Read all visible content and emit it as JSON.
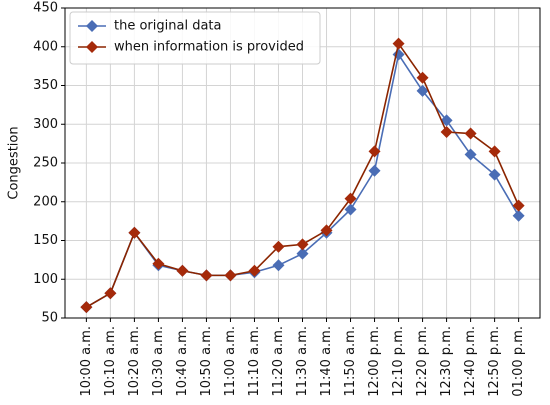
{
  "chart_data": {
    "type": "line",
    "y_label": "Congestion",
    "categories": [
      "10:00 a.m.",
      "10:10 a.m.",
      "10:20 a.m.",
      "10:30 a.m.",
      "10:40 a.m.",
      "10:50 a.m.",
      "11:00 a.m.",
      "11:10 a.m.",
      "11:20 a.m.",
      "11:30 a.m.",
      "11:40 a.m.",
      "11:50 a.m.",
      "12:00 p.m.",
      "12:10 p.m.",
      "12:20 p.m.",
      "12:30 p.m.",
      "12:40 p.m.",
      "12:50 p.m.",
      "01:00 p.m."
    ],
    "series": [
      {
        "name": "the original data",
        "color": "#4a6db5",
        "marker_color": "#4a6db5",
        "values": [
          64,
          82,
          160,
          118,
          111,
          105,
          105,
          109,
          118,
          133,
          160,
          190,
          240,
          390,
          343,
          305,
          261,
          235,
          182
        ]
      },
      {
        "name": "when information is provided",
        "color": "#8b2500",
        "marker_color": "#a52a0a",
        "values": [
          64,
          82,
          160,
          120,
          111,
          105,
          105,
          111,
          142,
          145,
          163,
          204,
          265,
          404,
          360,
          290,
          288,
          265,
          195
        ]
      }
    ],
    "ylim": [
      50,
      450
    ],
    "yticks": [
      50,
      100,
      150,
      200,
      250,
      300,
      350,
      400,
      450
    ],
    "grid": true,
    "legend": "upper left"
  }
}
